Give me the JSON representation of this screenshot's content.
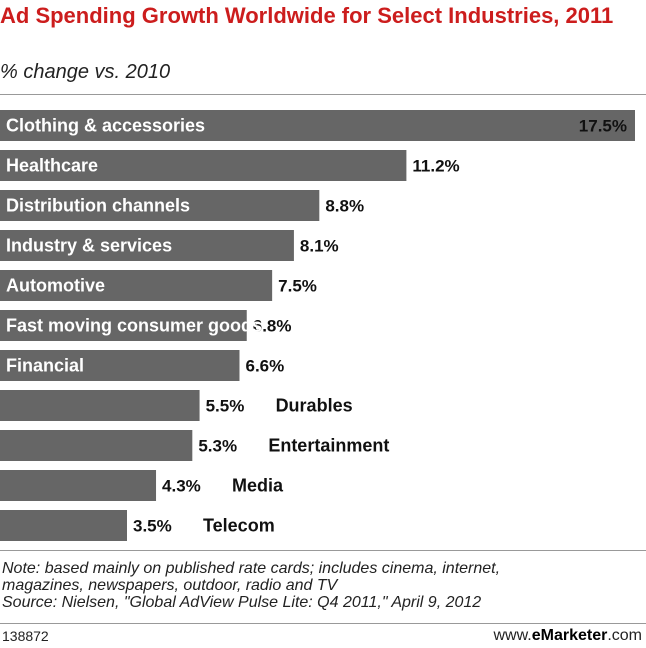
{
  "title": "Ad Spending Growth Worldwide for Select Industries, 2011",
  "subtitle": "% change vs. 2010",
  "chart_data": {
    "type": "bar",
    "orientation": "horizontal",
    "categories": [
      "Clothing & accessories",
      "Healthcare",
      "Distribution channels",
      "Industry & services",
      "Automotive",
      "Fast moving consumer goods",
      "Financial",
      "Durables",
      "Entertainment",
      "Media",
      "Telecom"
    ],
    "values": [
      17.5,
      11.2,
      8.8,
      8.1,
      7.5,
      6.8,
      6.6,
      5.5,
      5.3,
      4.3,
      3.5
    ],
    "value_labels": [
      "17.5%",
      "11.2%",
      "8.8%",
      "8.1%",
      "7.5%",
      "6.8%",
      "6.6%",
      "5.5%",
      "5.3%",
      "4.3%",
      "3.5%"
    ],
    "bar_color": "#666666",
    "xlim": [
      0,
      17.5
    ],
    "grid": false,
    "legend": "none"
  },
  "notes": [
    "Note: based mainly on published rate cards; includes cinema, internet,",
    "magazines, newspapers, outdoor, radio and TV",
    "Source: Nielsen, \"Global AdView Pulse Lite: Q4 2011,\" April 9, 2012"
  ],
  "footer": {
    "chart_id": "138872",
    "brand_prefix": "www.",
    "brand_name": "eMarketer",
    "brand_suffix": ".com"
  },
  "colors": {
    "title": "#cc1d1d",
    "bar": "#666666"
  }
}
